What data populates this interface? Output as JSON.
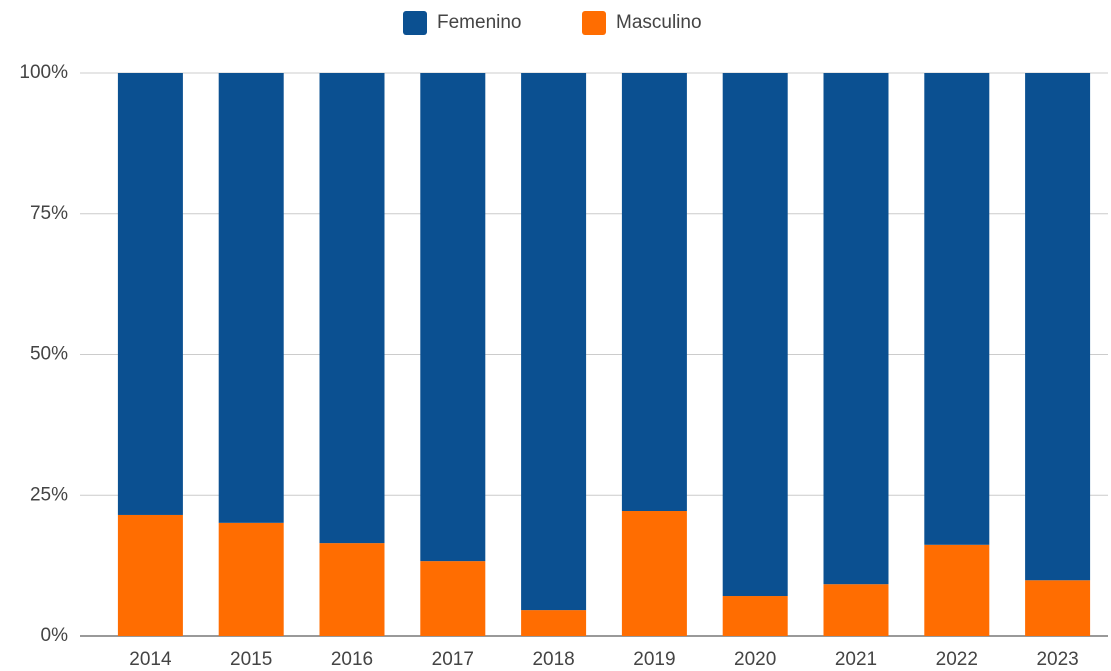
{
  "chart_data": {
    "type": "stacked_bar",
    "categories": [
      "2014",
      "2015",
      "2016",
      "2017",
      "2018",
      "2019",
      "2020",
      "2021",
      "2022",
      "2023"
    ],
    "series": [
      {
        "name": "Femenino",
        "color": "#0b5091",
        "values": [
          78.5,
          79.9,
          83.5,
          86.7,
          95.4,
          77.8,
          92.9,
          90.8,
          83.8,
          90.1
        ]
      },
      {
        "name": "Masculino",
        "color": "#ff6d01",
        "values": [
          21.5,
          20.1,
          16.5,
          13.3,
          4.6,
          22.2,
          7.1,
          9.2,
          16.2,
          9.9
        ]
      }
    ],
    "ylim": [
      0,
      100
    ],
    "yticks": [
      {
        "value": 0,
        "label": "0%"
      },
      {
        "value": 25,
        "label": "25%"
      },
      {
        "value": 50,
        "label": "50%"
      },
      {
        "value": 75,
        "label": "75%"
      },
      {
        "value": 100,
        "label": "100%"
      }
    ],
    "grid": true,
    "legend": "top"
  }
}
